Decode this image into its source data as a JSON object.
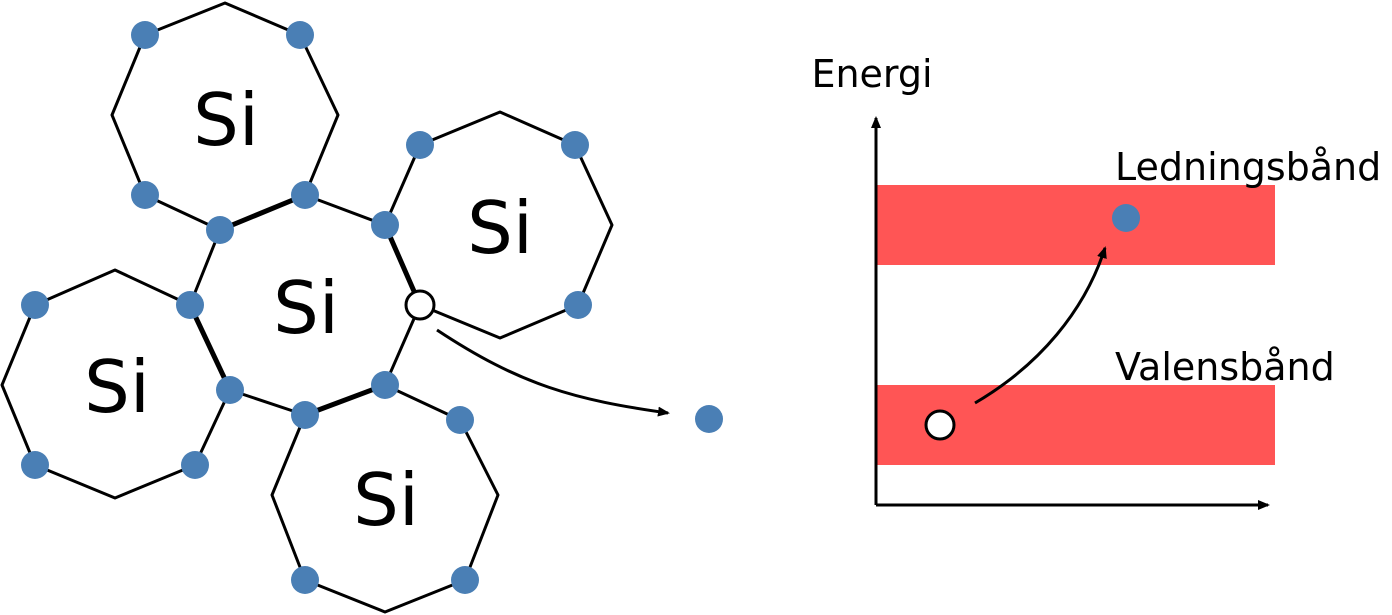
{
  "colors": {
    "electron": "#4a7fb5",
    "band": "#ff5555",
    "hole_fill": "#ffffff",
    "line": "#000000"
  },
  "lattice": {
    "atom_label": "Si"
  },
  "energy_diagram": {
    "y_axis_label": "Energi",
    "conduction_band_label": "Ledningsbånd",
    "valence_band_label": "Valensbånd"
  }
}
